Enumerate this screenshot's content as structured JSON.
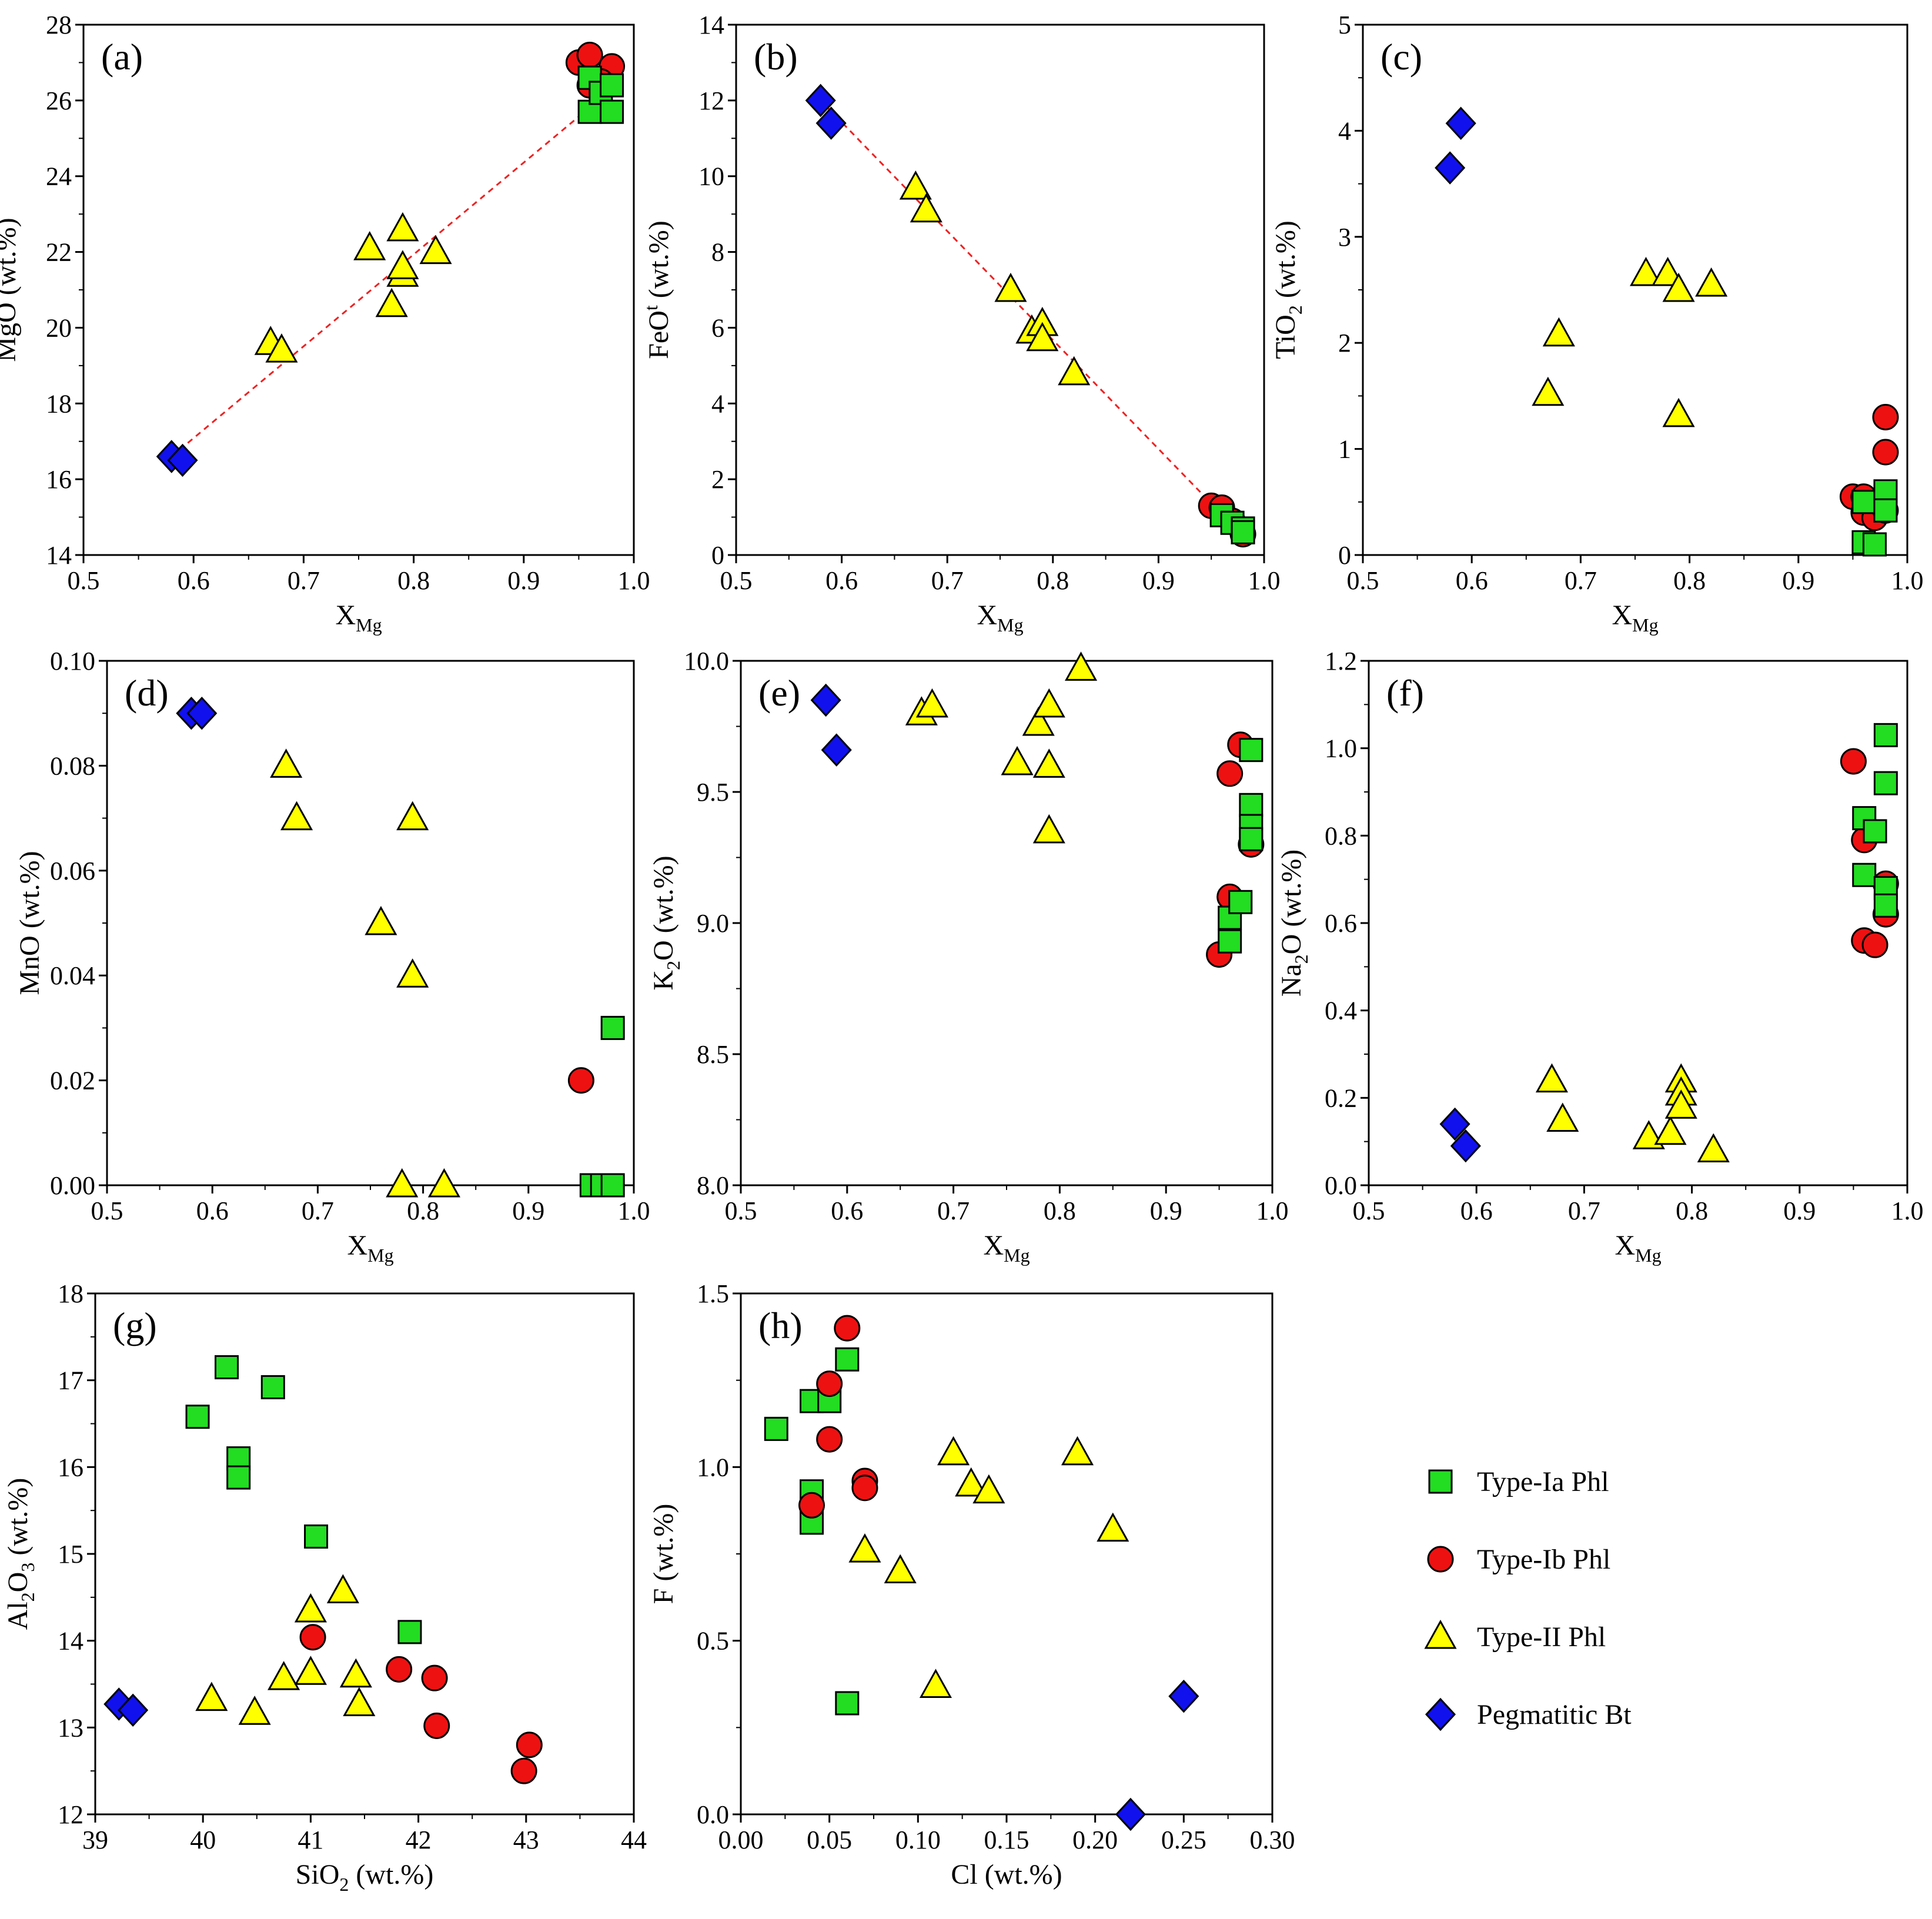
{
  "colors": {
    "type_Ia": "#22dd22",
    "type_Ib": "#ee1111",
    "type_II": "#ffff00",
    "bt": "#1111ee",
    "trend": "#ee2222"
  },
  "legend": {
    "items": [
      {
        "label": "Type-Ia Phl",
        "marker": "square",
        "color": "#22dd22"
      },
      {
        "label": "Type-Ib Phl",
        "marker": "circle",
        "color": "#ee1111"
      },
      {
        "label": "Type-II Phl",
        "marker": "triangle",
        "color": "#ffff00"
      },
      {
        "label": "Pegmatitic Bt",
        "marker": "diamond",
        "color": "#1111ee"
      }
    ]
  },
  "chart_data": [
    {
      "panel": "(a)",
      "type": "scatter",
      "xlabel": "X",
      "xlabel_sub": "Mg",
      "ylabel": "MgO (wt.%)",
      "xlim": [
        0.5,
        1.0
      ],
      "ylim": [
        14,
        28
      ],
      "xticks": [
        "0.5",
        "0.6",
        "0.7",
        "0.8",
        "0.9",
        "1.0"
      ],
      "yticks": [
        "14",
        "16",
        "18",
        "20",
        "22",
        "24",
        "26",
        "28"
      ],
      "trendline": [
        [
          0.58,
          16.6
        ],
        [
          0.98,
          26.3
        ]
      ],
      "series": [
        {
          "name": "Type-Ib Phl",
          "points": [
            [
              0.95,
              27.0
            ],
            [
              0.96,
              27.2
            ],
            [
              0.96,
              26.4
            ],
            [
              0.98,
              26.9
            ],
            [
              0.97,
              26.5
            ]
          ]
        },
        {
          "name": "Type-Ia Phl",
          "points": [
            [
              0.96,
              25.7
            ],
            [
              0.96,
              26.6
            ],
            [
              0.97,
              26.2
            ],
            [
              0.98,
              26.4
            ],
            [
              0.98,
              25.7
            ]
          ]
        },
        {
          "name": "Type-II Phl",
          "points": [
            [
              0.67,
              19.6
            ],
            [
              0.68,
              19.4
            ],
            [
              0.76,
              22.1
            ],
            [
              0.78,
              20.6
            ],
            [
              0.79,
              22.6
            ],
            [
              0.79,
              21.4
            ],
            [
              0.79,
              21.6
            ],
            [
              0.82,
              22.0
            ]
          ]
        },
        {
          "name": "Pegmatitic Bt",
          "points": [
            [
              0.58,
              16.6
            ],
            [
              0.59,
              16.5
            ]
          ]
        }
      ]
    },
    {
      "panel": "(b)",
      "type": "scatter",
      "xlabel": "X",
      "xlabel_sub": "Mg",
      "ylabel": "FeO",
      "ylabel_sup": "t",
      "ylabel_tail": " (wt.%)",
      "xlim": [
        0.5,
        1.0
      ],
      "ylim": [
        0,
        14
      ],
      "xticks": [
        "0.5",
        "0.6",
        "0.7",
        "0.8",
        "0.9",
        "1.0"
      ],
      "yticks": [
        "0",
        "2",
        "4",
        "6",
        "8",
        "10",
        "12",
        "14"
      ],
      "trendline": [
        [
          0.58,
          12.0
        ],
        [
          0.98,
          0.5
        ]
      ],
      "series": [
        {
          "name": "Type-Ib Phl",
          "points": [
            [
              0.95,
              1.3
            ],
            [
              0.96,
              1.25
            ],
            [
              0.97,
              0.9
            ],
            [
              0.98,
              0.55
            ]
          ]
        },
        {
          "name": "Type-Ia Phl",
          "points": [
            [
              0.96,
              1.05
            ],
            [
              0.97,
              0.85
            ],
            [
              0.98,
              0.7
            ],
            [
              0.98,
              0.6
            ]
          ]
        },
        {
          "name": "Type-II Phl",
          "points": [
            [
              0.67,
              9.7
            ],
            [
              0.68,
              9.1
            ],
            [
              0.76,
              7.0
            ],
            [
              0.78,
              5.9
            ],
            [
              0.79,
              6.1
            ],
            [
              0.79,
              5.7
            ],
            [
              0.82,
              4.8
            ]
          ]
        },
        {
          "name": "Pegmatitic Bt",
          "points": [
            [
              0.58,
              12.0
            ],
            [
              0.59,
              11.4
            ]
          ]
        }
      ]
    },
    {
      "panel": "(c)",
      "type": "scatter",
      "xlabel": "X",
      "xlabel_sub": "Mg",
      "ylabel": "TiO",
      "ylabel_sub": "2",
      "ylabel_tail": " (wt.%)",
      "xlim": [
        0.5,
        1.0
      ],
      "ylim": [
        0,
        5
      ],
      "xticks": [
        "0.5",
        "0.6",
        "0.7",
        "0.8",
        "0.9",
        "1.0"
      ],
      "yticks": [
        "0",
        "1",
        "2",
        "3",
        "4",
        "5"
      ],
      "series": [
        {
          "name": "Type-Ib Phl",
          "points": [
            [
              0.95,
              0.55
            ],
            [
              0.96,
              0.55
            ],
            [
              0.96,
              0.4
            ],
            [
              0.97,
              0.35
            ],
            [
              0.98,
              1.3
            ],
            [
              0.98,
              0.97
            ],
            [
              0.98,
              0.42
            ]
          ]
        },
        {
          "name": "Type-Ia Phl",
          "points": [
            [
              0.96,
              0.5
            ],
            [
              0.96,
              0.12
            ],
            [
              0.97,
              0.1
            ],
            [
              0.98,
              0.6
            ],
            [
              0.98,
              0.42
            ]
          ]
        },
        {
          "name": "Type-II Phl",
          "points": [
            [
              0.67,
              1.52
            ],
            [
              0.68,
              2.08
            ],
            [
              0.76,
              2.65
            ],
            [
              0.78,
              2.65
            ],
            [
              0.79,
              2.5
            ],
            [
              0.79,
              1.32
            ],
            [
              0.82,
              2.55
            ]
          ]
        },
        {
          "name": "Pegmatitic Bt",
          "points": [
            [
              0.58,
              3.65
            ],
            [
              0.59,
              4.07
            ]
          ]
        }
      ]
    },
    {
      "panel": "(d)",
      "type": "scatter",
      "xlabel": "X",
      "xlabel_sub": "Mg",
      "ylabel": "MnO (wt.%)",
      "xlim": [
        0.5,
        1.0
      ],
      "ylim": [
        0,
        0.1
      ],
      "xticks": [
        "0.5",
        "0.6",
        "0.7",
        "0.8",
        "0.9",
        "1.0"
      ],
      "yticks": [
        "0.00",
        "0.02",
        "0.04",
        "0.06",
        "0.08",
        "0.10"
      ],
      "series": [
        {
          "name": "Type-Ib Phl",
          "points": [
            [
              0.95,
              0.02
            ]
          ]
        },
        {
          "name": "Type-Ia Phl",
          "points": [
            [
              0.96,
              0.0
            ],
            [
              0.97,
              0.0
            ],
            [
              0.98,
              0.0
            ],
            [
              0.98,
              0.03
            ]
          ]
        },
        {
          "name": "Type-II Phl",
          "points": [
            [
              0.67,
              0.08
            ],
            [
              0.68,
              0.07
            ],
            [
              0.76,
              0.05
            ],
            [
              0.78,
              0.0
            ],
            [
              0.79,
              0.07
            ],
            [
              0.79,
              0.04
            ],
            [
              0.82,
              0.0
            ]
          ]
        },
        {
          "name": "Pegmatitic Bt",
          "points": [
            [
              0.58,
              0.09
            ],
            [
              0.59,
              0.09
            ]
          ]
        }
      ]
    },
    {
      "panel": "(e)",
      "type": "scatter",
      "xlabel": "X",
      "xlabel_sub": "Mg",
      "ylabel": "K",
      "ylabel_sub": "2",
      "ylabel_tail": "O (wt.%)",
      "xlim": [
        0.5,
        1.0
      ],
      "ylim": [
        8.0,
        10.0
      ],
      "xticks": [
        "0.5",
        "0.6",
        "0.7",
        "0.8",
        "0.9",
        "1.0"
      ],
      "yticks": [
        "8.0",
        "8.5",
        "9.0",
        "9.5",
        "10.0"
      ],
      "series": [
        {
          "name": "Type-Ib Phl",
          "points": [
            [
              0.95,
              8.88
            ],
            [
              0.96,
              9.57
            ],
            [
              0.96,
              9.1
            ],
            [
              0.97,
              9.68
            ],
            [
              0.98,
              9.3
            ]
          ]
        },
        {
          "name": "Type-Ia Phl",
          "points": [
            [
              0.96,
              9.02
            ],
            [
              0.96,
              8.93
            ],
            [
              0.97,
              9.08
            ],
            [
              0.98,
              9.66
            ],
            [
              0.98,
              9.45
            ],
            [
              0.98,
              9.37
            ],
            [
              0.98,
              9.32
            ]
          ]
        },
        {
          "name": "Type-II Phl",
          "points": [
            [
              0.67,
              9.8
            ],
            [
              0.68,
              9.83
            ],
            [
              0.76,
              9.61
            ],
            [
              0.78,
              9.76
            ],
            [
              0.79,
              9.83
            ],
            [
              0.79,
              9.6
            ],
            [
              0.79,
              9.35
            ],
            [
              0.82,
              9.97
            ]
          ]
        },
        {
          "name": "Pegmatitic Bt",
          "points": [
            [
              0.58,
              9.85
            ],
            [
              0.59,
              9.66
            ]
          ]
        }
      ]
    },
    {
      "panel": "(f)",
      "type": "scatter",
      "xlabel": "X",
      "xlabel_sub": "Mg",
      "ylabel": "Na",
      "ylabel_sub": "2",
      "ylabel_tail": "O (wt.%)",
      "xlim": [
        0.5,
        1.0
      ],
      "ylim": [
        0,
        1.2
      ],
      "xticks": [
        "0.5",
        "0.6",
        "0.7",
        "0.8",
        "0.9",
        "1.0"
      ],
      "yticks": [
        "0.0",
        "0.2",
        "0.4",
        "0.6",
        "0.8",
        "1.0",
        "1.2"
      ],
      "series": [
        {
          "name": "Type-Ib Phl",
          "points": [
            [
              0.95,
              0.97
            ],
            [
              0.96,
              0.79
            ],
            [
              0.96,
              0.56
            ],
            [
              0.97,
              0.55
            ],
            [
              0.98,
              0.69
            ],
            [
              0.98,
              0.62
            ]
          ]
        },
        {
          "name": "Type-Ia Phl",
          "points": [
            [
              0.96,
              0.84
            ],
            [
              0.96,
              0.71
            ],
            [
              0.97,
              0.81
            ],
            [
              0.98,
              1.03
            ],
            [
              0.98,
              0.92
            ],
            [
              0.98,
              0.68
            ],
            [
              0.98,
              0.64
            ]
          ]
        },
        {
          "name": "Type-II Phl",
          "points": [
            [
              0.67,
              0.24
            ],
            [
              0.68,
              0.15
            ],
            [
              0.76,
              0.11
            ],
            [
              0.78,
              0.12
            ],
            [
              0.79,
              0.24
            ],
            [
              0.79,
              0.21
            ],
            [
              0.79,
              0.18
            ],
            [
              0.82,
              0.08
            ]
          ]
        },
        {
          "name": "Pegmatitic Bt",
          "points": [
            [
              0.58,
              0.14
            ],
            [
              0.59,
              0.09
            ]
          ]
        }
      ]
    },
    {
      "panel": "(g)",
      "type": "scatter",
      "xlabel": "SiO",
      "xlabel_sub": "2",
      "xlabel_tail": " (wt.%)",
      "ylabel": "Al",
      "ylabel_sub": "2",
      "ylabel_mid": "O",
      "ylabel_sub2": "3",
      "ylabel_tail": " (wt.%)",
      "xlim": [
        39,
        44
      ],
      "ylim": [
        12,
        18
      ],
      "xticks": [
        "39",
        "40",
        "41",
        "42",
        "43",
        "44"
      ],
      "yticks": [
        "12",
        "13",
        "14",
        "15",
        "16",
        "17",
        "18"
      ],
      "series": [
        {
          "name": "Type-Ia Phl",
          "points": [
            [
              39.95,
              16.58
            ],
            [
              40.22,
              17.15
            ],
            [
              40.33,
              16.1
            ],
            [
              40.33,
              15.88
            ],
            [
              40.65,
              16.92
            ],
            [
              41.05,
              15.2
            ],
            [
              41.92,
              14.1
            ]
          ]
        },
        {
          "name": "Type-Ib Phl",
          "points": [
            [
              41.02,
              14.04
            ],
            [
              41.82,
              13.67
            ],
            [
              42.15,
              13.57
            ],
            [
              42.17,
              13.02
            ],
            [
              42.98,
              12.5
            ],
            [
              43.03,
              12.8
            ]
          ]
        },
        {
          "name": "Type-II Phl",
          "points": [
            [
              40.08,
              13.33
            ],
            [
              40.48,
              13.17
            ],
            [
              40.75,
              13.57
            ],
            [
              41.0,
              14.35
            ],
            [
              41.0,
              13.63
            ],
            [
              41.3,
              14.57
            ],
            [
              41.42,
              13.6
            ],
            [
              41.45,
              13.27
            ]
          ]
        },
        {
          "name": "Pegmatitic Bt",
          "points": [
            [
              39.22,
              13.27
            ],
            [
              39.35,
              13.2
            ]
          ]
        }
      ]
    },
    {
      "panel": "(h)",
      "type": "scatter",
      "xlabel": "Cl (wt.%)",
      "ylabel": "F  (wt.%)",
      "xlim": [
        0,
        0.3
      ],
      "ylim": [
        0,
        1.5
      ],
      "xticks": [
        "0.00",
        "0.05",
        "0.10",
        "0.15",
        "0.20",
        "0.25",
        "0.30"
      ],
      "yticks": [
        "0.0",
        "0.5",
        "1.0",
        "1.5"
      ],
      "series": [
        {
          "name": "Type-Ia Phl",
          "points": [
            [
              0.02,
              1.11
            ],
            [
              0.04,
              1.19
            ],
            [
              0.04,
              0.93
            ],
            [
              0.04,
              0.84
            ],
            [
              0.05,
              1.19
            ],
            [
              0.06,
              1.31
            ],
            [
              0.06,
              0.32
            ]
          ]
        },
        {
          "name": "Type-Ib Phl",
          "points": [
            [
              0.04,
              0.89
            ],
            [
              0.05,
              1.24
            ],
            [
              0.05,
              1.08
            ],
            [
              0.06,
              1.4
            ],
            [
              0.07,
              0.96
            ],
            [
              0.07,
              0.94
            ]
          ]
        },
        {
          "name": "Type-II Phl",
          "points": [
            [
              0.07,
              0.76
            ],
            [
              0.09,
              0.7
            ],
            [
              0.11,
              0.37
            ],
            [
              0.12,
              1.04
            ],
            [
              0.13,
              0.95
            ],
            [
              0.14,
              0.93
            ],
            [
              0.19,
              1.04
            ],
            [
              0.21,
              0.82
            ]
          ]
        },
        {
          "name": "Pegmatitic Bt",
          "points": [
            [
              0.22,
              0.0
            ],
            [
              0.25,
              0.34
            ]
          ]
        }
      ]
    }
  ]
}
